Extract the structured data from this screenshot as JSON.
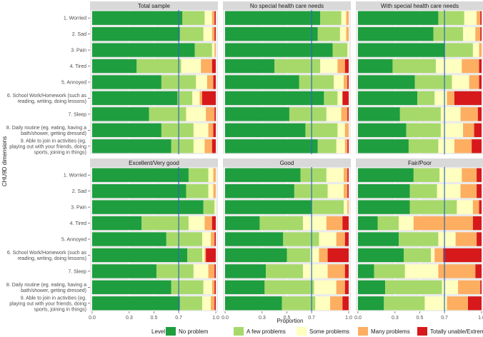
{
  "chart_data": {
    "type": "bar",
    "orientation": "horizontal-stacked",
    "xlabel": "Proportion",
    "ylabel": "CHU9D dimensions",
    "xlim": [
      0,
      1
    ],
    "x_ticks": [
      "0.0",
      "0.3",
      "0.5",
      "0.7",
      "1.0"
    ],
    "x_tick_values": [
      0.0,
      0.3,
      0.5,
      0.7,
      1.0
    ],
    "reference_line": 0.7,
    "reference_color": "#2b6cb0",
    "categories": [
      "1. Worried",
      "2. Sad",
      "3. Pain",
      "4. Tired",
      "5. Annoyed",
      "6. School Work/Homework (such as reading, writing, doing lessons)",
      "7. Sleep",
      "8. Daily routine (eg. eating, having a bath/shower, getting dressed)",
      "9. Able to join in activities (eg. playing out with your friends, doing sports, joining in things)"
    ],
    "levels": [
      "No problem",
      "A few problems",
      "Some problems",
      "Many problems",
      "Totally unable/Extremely"
    ],
    "level_colors": [
      "#1e9e3e",
      "#a6d96a",
      "#ffffbf",
      "#fdae61",
      "#d7191c"
    ],
    "legend_title": "Level",
    "legend_position": "bottom",
    "panels": [
      {
        "title": "Total sample",
        "values": [
          [
            0.73,
            0.18,
            0.06,
            0.02,
            0.01
          ],
          [
            0.71,
            0.19,
            0.07,
            0.02,
            0.01
          ],
          [
            0.83,
            0.14,
            0.02,
            0.01,
            0.0
          ],
          [
            0.36,
            0.36,
            0.16,
            0.09,
            0.03
          ],
          [
            0.56,
            0.28,
            0.09,
            0.05,
            0.02
          ],
          [
            0.69,
            0.12,
            0.06,
            0.02,
            0.11
          ],
          [
            0.46,
            0.3,
            0.16,
            0.07,
            0.01
          ],
          [
            0.56,
            0.26,
            0.12,
            0.04,
            0.02
          ],
          [
            0.64,
            0.18,
            0.09,
            0.06,
            0.03
          ]
        ]
      },
      {
        "title": "No special health care needs",
        "values": [
          [
            0.77,
            0.17,
            0.04,
            0.02,
            0.0
          ],
          [
            0.75,
            0.18,
            0.05,
            0.02,
            0.0
          ],
          [
            0.87,
            0.12,
            0.01,
            0.0,
            0.0
          ],
          [
            0.4,
            0.37,
            0.14,
            0.06,
            0.03
          ],
          [
            0.6,
            0.28,
            0.08,
            0.03,
            0.01
          ],
          [
            0.8,
            0.11,
            0.04,
            0.0,
            0.05
          ],
          [
            0.52,
            0.3,
            0.12,
            0.05,
            0.01
          ],
          [
            0.65,
            0.26,
            0.06,
            0.03,
            0.0
          ],
          [
            0.75,
            0.15,
            0.07,
            0.02,
            0.01
          ]
        ]
      },
      {
        "title": "With special health care needs",
        "values": [
          [
            0.65,
            0.21,
            0.1,
            0.03,
            0.01
          ],
          [
            0.61,
            0.24,
            0.1,
            0.04,
            0.01
          ],
          [
            0.7,
            0.23,
            0.05,
            0.02,
            0.0
          ],
          [
            0.28,
            0.35,
            0.21,
            0.14,
            0.02
          ],
          [
            0.46,
            0.3,
            0.14,
            0.08,
            0.02
          ],
          [
            0.48,
            0.14,
            0.1,
            0.06,
            0.22
          ],
          [
            0.34,
            0.33,
            0.16,
            0.14,
            0.03
          ],
          [
            0.39,
            0.28,
            0.18,
            0.09,
            0.06
          ],
          [
            0.41,
            0.24,
            0.13,
            0.14,
            0.08
          ]
        ]
      },
      {
        "title": "Excellent/Very good",
        "values": [
          [
            0.78,
            0.16,
            0.04,
            0.02,
            0.0
          ],
          [
            0.76,
            0.18,
            0.04,
            0.02,
            0.0
          ],
          [
            0.9,
            0.09,
            0.01,
            0.0,
            0.0
          ],
          [
            0.4,
            0.38,
            0.13,
            0.06,
            0.03
          ],
          [
            0.6,
            0.29,
            0.07,
            0.03,
            0.01
          ],
          [
            0.77,
            0.12,
            0.02,
            0.01,
            0.08
          ],
          [
            0.52,
            0.3,
            0.12,
            0.05,
            0.01
          ],
          [
            0.64,
            0.26,
            0.07,
            0.02,
            0.01
          ],
          [
            0.71,
            0.18,
            0.07,
            0.03,
            0.01
          ]
        ]
      },
      {
        "title": "Good",
        "values": [
          [
            0.61,
            0.21,
            0.14,
            0.03,
            0.01
          ],
          [
            0.56,
            0.27,
            0.13,
            0.03,
            0.01
          ],
          [
            0.7,
            0.26,
            0.03,
            0.01,
            0.0
          ],
          [
            0.28,
            0.35,
            0.19,
            0.13,
            0.05
          ],
          [
            0.47,
            0.29,
            0.14,
            0.07,
            0.03
          ],
          [
            0.5,
            0.19,
            0.07,
            0.07,
            0.17
          ],
          [
            0.33,
            0.3,
            0.2,
            0.14,
            0.03
          ],
          [
            0.32,
            0.4,
            0.18,
            0.07,
            0.03
          ],
          [
            0.46,
            0.27,
            0.12,
            0.1,
            0.05
          ]
        ]
      },
      {
        "title": "Fair/Poor",
        "values": [
          [
            0.45,
            0.21,
            0.18,
            0.12,
            0.04
          ],
          [
            0.42,
            0.22,
            0.19,
            0.13,
            0.04
          ],
          [
            0.42,
            0.38,
            0.13,
            0.05,
            0.02
          ],
          [
            0.16,
            0.17,
            0.12,
            0.48,
            0.07
          ],
          [
            0.33,
            0.32,
            0.14,
            0.17,
            0.04
          ],
          [
            0.37,
            0.22,
            0.03,
            0.07,
            0.31
          ],
          [
            0.13,
            0.25,
            0.27,
            0.3,
            0.05
          ],
          [
            0.22,
            0.46,
            0.13,
            0.18,
            0.01
          ],
          [
            0.21,
            0.33,
            0.18,
            0.17,
            0.11
          ]
        ]
      }
    ]
  }
}
